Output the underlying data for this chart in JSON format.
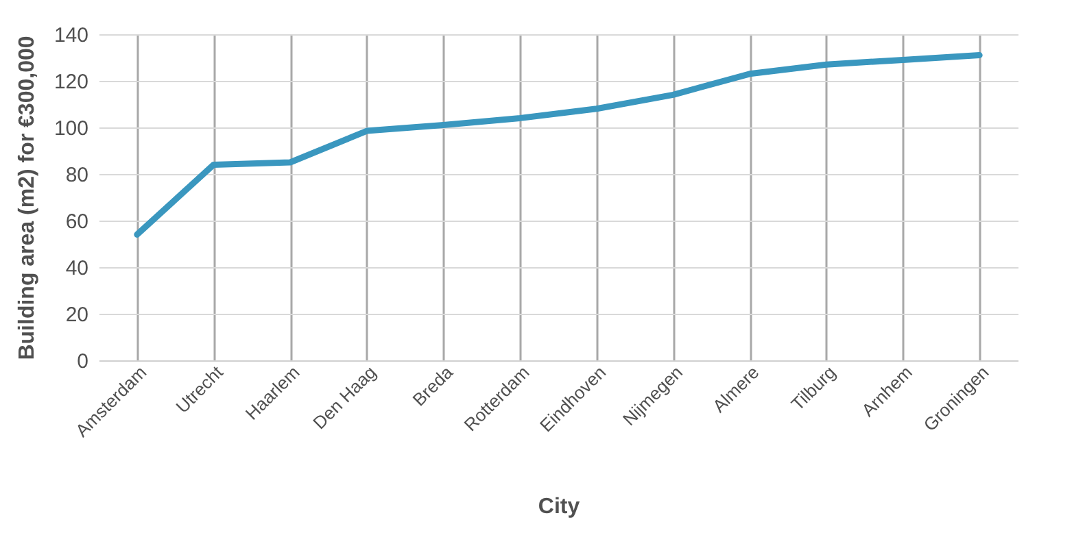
{
  "chart_data": {
    "type": "line",
    "xlabel": "City",
    "ylabel": "Building area (m2) for €300,000",
    "categories": [
      "Amsterdam",
      "Utrecht",
      "Haarlem",
      "Den Haag",
      "Breda",
      "Rotterdam",
      "Eindhoven",
      "Nijmegen",
      "Almere",
      "Tilburg",
      "Arnhem",
      "Groningen"
    ],
    "series": [
      {
        "color": "#3a97bf",
        "values": [
          54,
          84,
          85,
          98.5,
          101,
          104,
          108,
          114,
          123,
          127,
          129,
          131
        ]
      }
    ],
    "ylim": [
      0,
      140
    ],
    "yticks": [
      0,
      20,
      40,
      60,
      80,
      100,
      120,
      140
    ],
    "grid": true,
    "marker": "none",
    "line_style": "solid"
  }
}
